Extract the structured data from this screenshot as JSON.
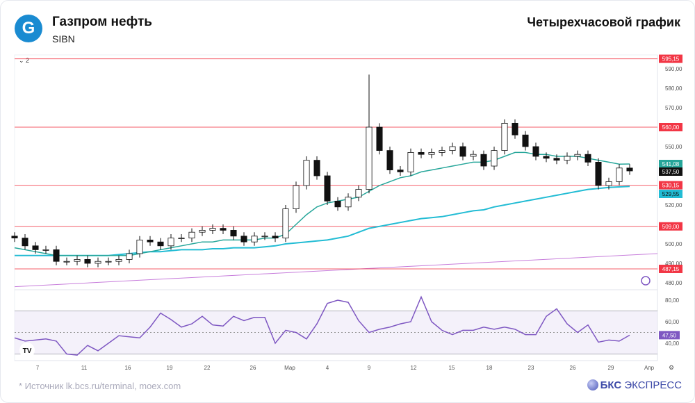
{
  "header": {
    "company": "Газпром нефть",
    "ticker": "SIBN",
    "period": "Четырехчасовой график",
    "logo_letter": "G"
  },
  "footer": {
    "source": "*  Источник lk.bcs.ru/terminal, moex.com",
    "brand_bold": "БКС",
    "brand_rest": " ЭКСПРЕСС"
  },
  "colors": {
    "candle_up": "#ffffff",
    "candle_down": "#111111",
    "ma_short": "#26a69a",
    "ma_long": "#22bcd4",
    "trend": "#c77ddb",
    "level": "#f23645",
    "rsi": "#7e57c2"
  },
  "chart_data": {
    "type": "candlestick",
    "collapse_label": "2",
    "x_ticks": [
      "7",
      "11",
      "16",
      "19",
      "22",
      "26",
      "Мар",
      "4",
      "9",
      "12",
      "15",
      "18",
      "23",
      "26",
      "29",
      "Апр"
    ],
    "y_ticks": [
      "590,00",
      "580,00",
      "570,00",
      "550,00",
      "520,00",
      "500,00",
      "490,00",
      "480,00"
    ],
    "ylim": [
      480,
      590
    ],
    "closes": [
      503,
      499,
      497,
      497,
      491,
      491,
      492,
      490,
      491,
      491,
      492,
      495,
      502,
      501,
      499,
      503,
      503,
      506,
      507,
      508,
      507,
      504,
      501,
      504,
      504,
      503,
      518,
      530,
      543,
      535,
      522,
      519,
      524,
      528,
      560,
      548,
      538,
      537,
      547,
      546,
      547,
      548,
      550,
      545,
      546,
      540,
      548,
      562,
      556,
      550,
      545,
      544,
      543,
      545,
      546,
      542,
      530,
      532,
      539,
      537.5
    ],
    "spike": {
      "index": 34,
      "high": 587
    },
    "ma_short": [
      498,
      497,
      496,
      495,
      494,
      494,
      494,
      494,
      494,
      494,
      494,
      494,
      495,
      496,
      497,
      498,
      499,
      500,
      501,
      501,
      502,
      502,
      502,
      502,
      503,
      503,
      505,
      510,
      515,
      519,
      521,
      522,
      523,
      524,
      527,
      530,
      532,
      534,
      535,
      537,
      538,
      539,
      540,
      541,
      542,
      542,
      543,
      545,
      547,
      547,
      546,
      546,
      545,
      545,
      545,
      544,
      543,
      542,
      541,
      541.08
    ],
    "ma_long": [
      494,
      494,
      494,
      494,
      494,
      494,
      494,
      494,
      494,
      494,
      494.5,
      495,
      495.5,
      496,
      496,
      496.5,
      497,
      497,
      497,
      497.5,
      497.5,
      498,
      498,
      498,
      498.5,
      499,
      500,
      500.5,
      501,
      501.5,
      502,
      503,
      504,
      506,
      508,
      509,
      510,
      511,
      512,
      513,
      513.5,
      514,
      515,
      516,
      517,
      517.5,
      519,
      520,
      521,
      522,
      523,
      524,
      525,
      526,
      527,
      528,
      528.5,
      529,
      529.3,
      529.55
    ],
    "trend_line": [
      478,
      495
    ],
    "levels": [
      {
        "value": 595.15,
        "label": "595,15"
      },
      {
        "value": 560,
        "label": "560,00"
      },
      {
        "value": 530.15,
        "label": "530,15"
      },
      {
        "value": 509,
        "label": "509,00"
      },
      {
        "value": 487.15,
        "label": "487,15"
      }
    ],
    "price_labels": {
      "ma_short": "541,08",
      "last": "537,50",
      "ma_long": "529,55"
    },
    "rsi": {
      "y_ticks": [
        "80,00",
        "60,00",
        "40,00"
      ],
      "upper": 70,
      "lower": 30,
      "mid": 50,
      "last_label": "47,50",
      "values": [
        45,
        42,
        43,
        44,
        42,
        30,
        29,
        38,
        33,
        40,
        47,
        46,
        45,
        55,
        68,
        62,
        55,
        58,
        65,
        57,
        56,
        65,
        61,
        64,
        64,
        40,
        52,
        50,
        44,
        58,
        77,
        80,
        78,
        61,
        50,
        53,
        55,
        58,
        60,
        83,
        60,
        52,
        48,
        52,
        52,
        55,
        53,
        55,
        53,
        48,
        48,
        65,
        72,
        58,
        50,
        57,
        41,
        43,
        42,
        47.5
      ]
    }
  }
}
